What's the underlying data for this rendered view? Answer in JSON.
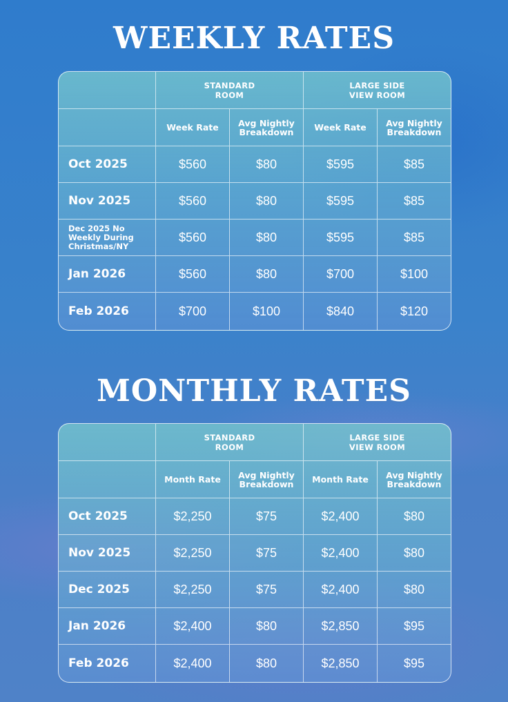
{
  "weekly": {
    "title": "WEEKLY RATES",
    "groups": [
      "STANDARD\nROOM",
      "LARGE SIDE\nVIEW ROOM"
    ],
    "subheaders": [
      "Week Rate",
      "Avg Nightly\nBreakdown",
      "Week Rate",
      "Avg Nightly\nBreakdown"
    ],
    "rows": [
      {
        "label": "Oct 2025",
        "values": [
          "$560",
          "$80",
          "$595",
          "$85"
        ]
      },
      {
        "label": "Nov 2025",
        "values": [
          "$560",
          "$80",
          "$595",
          "$85"
        ]
      },
      {
        "label": "Dec 2025 No\nWeekly During\nChristmas/NY",
        "values": [
          "$560",
          "$80",
          "$595",
          "$85"
        ]
      },
      {
        "label": "Jan 2026",
        "values": [
          "$560",
          "$80",
          "$700",
          "$100"
        ]
      },
      {
        "label": "Feb 2026",
        "values": [
          "$700",
          "$100",
          "$840",
          "$120"
        ]
      }
    ]
  },
  "monthly": {
    "title": "MONTHLY RATES",
    "groups": [
      "STANDARD\nROOM",
      "LARGE SIDE\nVIEW ROOM"
    ],
    "subheaders": [
      "Month Rate",
      "Avg Nightly\nBreakdown",
      "Month Rate",
      "Avg Nightly\nBreakdown"
    ],
    "rows": [
      {
        "label": "Oct 2025",
        "values": [
          "$2,250",
          "$75",
          "$2,400",
          "$80"
        ]
      },
      {
        "label": "Nov 2025",
        "values": [
          "$2,250",
          "$75",
          "$2,400",
          "$80"
        ]
      },
      {
        "label": "Dec 2025",
        "values": [
          "$2,250",
          "$75",
          "$2,400",
          "$80"
        ]
      },
      {
        "label": "Jan 2026",
        "values": [
          "$2,400",
          "$80",
          "$2,850",
          "$95"
        ]
      },
      {
        "label": "Feb 2026",
        "values": [
          "$2,400",
          "$80",
          "$2,850",
          "$95"
        ]
      }
    ]
  }
}
